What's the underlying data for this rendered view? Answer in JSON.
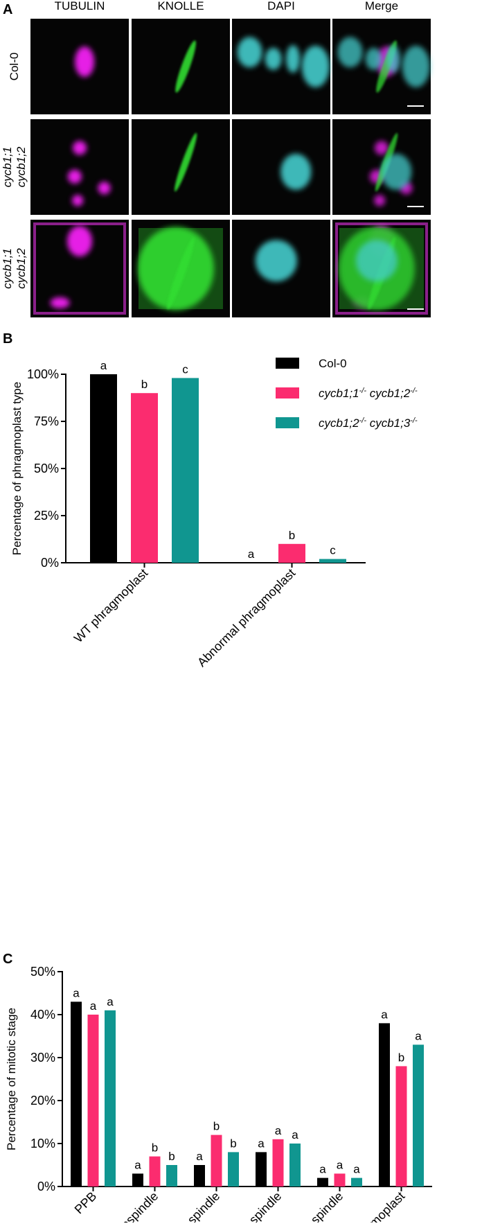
{
  "panel_a": {
    "letter": "A",
    "columns": [
      "TUBULIN",
      "KNOLLE",
      "DAPI",
      "Merge"
    ],
    "rows": [
      [
        "Col-0"
      ],
      [
        "cycb1;1",
        "cycb1;2"
      ],
      [
        "cycb1;1",
        "cycb1;2"
      ]
    ]
  },
  "chart_data": [
    {
      "type": "bar",
      "panel": "B",
      "ylabel": "Percentage of phragmoplast type",
      "categories": [
        "WT phragmoplast",
        "Abnormal phragmoplast"
      ],
      "series": [
        {
          "name": "Col-0",
          "color": "#000000",
          "values": [
            100,
            0
          ],
          "letters": [
            "a",
            "a"
          ]
        },
        {
          "name": "cycb1;1-/- cycb1;2-/-",
          "color": "#fb2c6f",
          "values": [
            90,
            10
          ],
          "letters": [
            "b",
            "b"
          ]
        },
        {
          "name": "cycb1;2-/- cycb1;3-/-",
          "color": "#109690",
          "values": [
            98,
            2
          ],
          "letters": [
            "c",
            "c"
          ]
        }
      ],
      "ylim": [
        0,
        100
      ],
      "yticks": [
        {
          "value": 0,
          "label": "0%"
        },
        {
          "value": 25,
          "label": "25%"
        },
        {
          "value": 50,
          "label": "50%"
        },
        {
          "value": 75,
          "label": "75%"
        },
        {
          "value": 100,
          "label": "100%"
        }
      ],
      "legend": "top-right"
    },
    {
      "type": "bar",
      "panel": "C",
      "ylabel": "Percentage of mitotic stage",
      "categories": [
        "PPB",
        "Prospindle",
        "Early spindle",
        "Metaphase spindle",
        "Anaphase spindle",
        "Phragmoplast"
      ],
      "series": [
        {
          "color": "#000000",
          "values": [
            43,
            3,
            5,
            8,
            2,
            38
          ],
          "letters": [
            "a",
            "a",
            "a",
            "a",
            "a",
            "a"
          ]
        },
        {
          "color": "#fb2c6f",
          "values": [
            40,
            7,
            12,
            11,
            3,
            28
          ],
          "letters": [
            "a",
            "b",
            "b",
            "a",
            "a",
            "b"
          ]
        },
        {
          "color": "#109690",
          "values": [
            41,
            5,
            8,
            10,
            2,
            33
          ],
          "letters": [
            "a",
            "b",
            "b",
            "a",
            "a",
            "a"
          ]
        }
      ],
      "ylim": [
        0,
        50
      ],
      "yticks": [
        {
          "value": 0,
          "label": "0%"
        },
        {
          "value": 10,
          "label": "10%"
        },
        {
          "value": 20,
          "label": "20%"
        },
        {
          "value": 30,
          "label": "30%"
        },
        {
          "value": 40,
          "label": "40%"
        },
        {
          "value": 50,
          "label": "50%"
        }
      ]
    }
  ]
}
